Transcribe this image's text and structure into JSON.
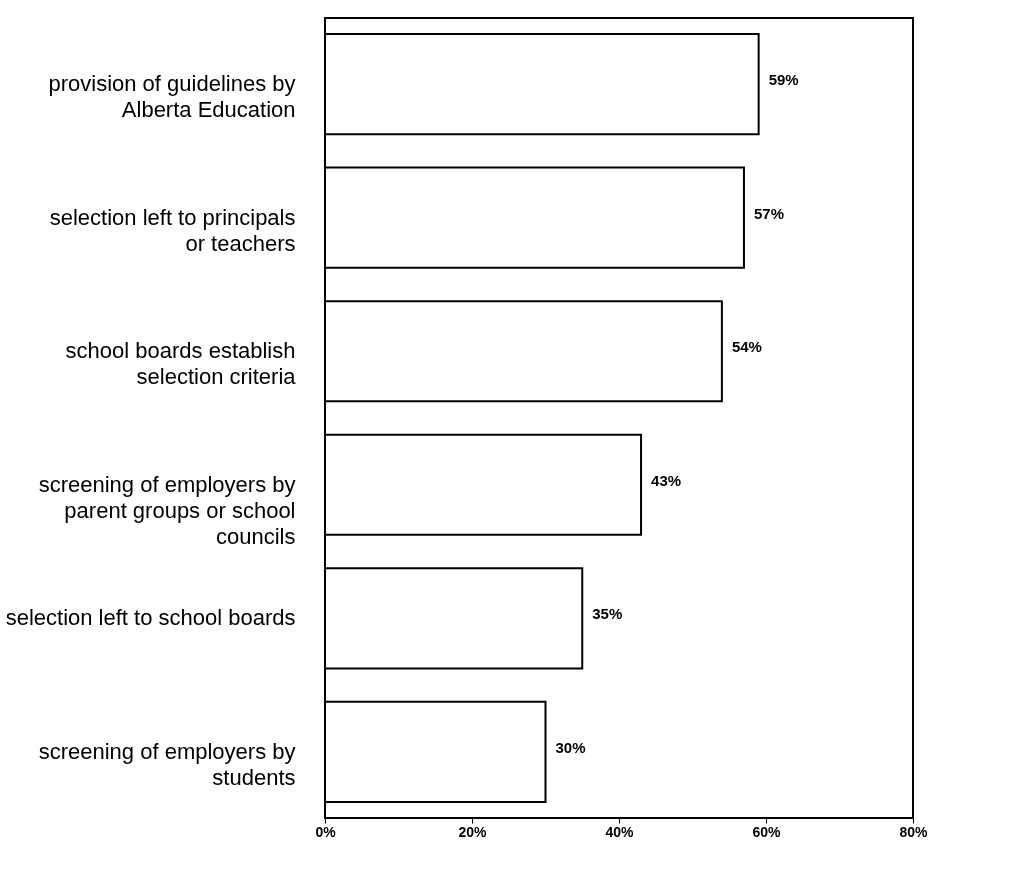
{
  "chart_data": {
    "type": "bar",
    "orientation": "horizontal",
    "categories": [
      "provision of guidelines by\nAlberta Education",
      "selection left to principals\nor teachers",
      "school boards establish\nselection criteria",
      "screening of employers by\nparent groups or school\ncouncils",
      "selection left to school boards",
      "screening of employers by\nstudents"
    ],
    "values": [
      59,
      57,
      54,
      43,
      35,
      30
    ],
    "value_labels": [
      "59%",
      "57%",
      "54%",
      "43%",
      "35%",
      "30%"
    ],
    "color": "#ffffff",
    "xlim": [
      0,
      80
    ],
    "xticks": [
      {
        "value": 0,
        "label": "0%"
      },
      {
        "value": 20,
        "label": "20%"
      },
      {
        "value": 40,
        "label": "40%"
      },
      {
        "value": 60,
        "label": "60%"
      },
      {
        "value": 80,
        "label": "80%"
      }
    ],
    "grid": false
  }
}
